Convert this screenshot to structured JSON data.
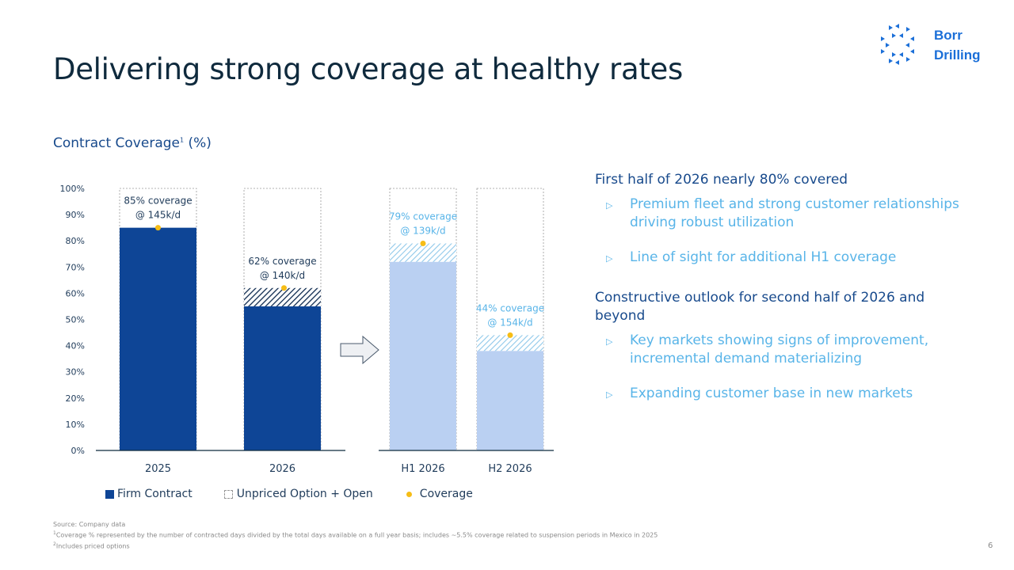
{
  "slide": {
    "title": "Delivering strong coverage at healthy rates",
    "page_number": "6",
    "logo": {
      "line1": "Borr",
      "line2": "Drilling",
      "icon": "borr-drilling-logo-icon",
      "color": "#1b6fd8"
    }
  },
  "chart_section": {
    "subtitle": "Contract Coverage",
    "subtitle_sup": "1",
    "subtitle_suffix": " (%)"
  },
  "chart_data": {
    "type": "bar",
    "stacked": true,
    "title": "Contract Coverage (%)",
    "xlabel": "",
    "ylabel": "",
    "ylim": [
      0,
      100
    ],
    "y_ticks": [
      "0%",
      "10%",
      "20%",
      "30%",
      "40%",
      "50%",
      "60%",
      "70%",
      "80%",
      "90%",
      "100%"
    ],
    "categories": [
      "2025",
      "2026",
      "H1 2026",
      "H2 2026"
    ],
    "groups": [
      {
        "categories": [
          "2025",
          "2026"
        ],
        "style": "annual"
      },
      {
        "categories": [
          "H1 2026",
          "H2 2026"
        ],
        "style": "half-year"
      }
    ],
    "series": [
      {
        "name": "Firm Contract",
        "values": [
          85,
          55,
          72,
          38
        ]
      },
      {
        "name": "Priced Options",
        "values": [
          0,
          7,
          7,
          6
        ]
      },
      {
        "name": "Unpriced Option + Open",
        "values": [
          15,
          38,
          21,
          56
        ]
      }
    ],
    "coverage": {
      "name": "Coverage",
      "values": [
        85,
        62,
        79,
        44
      ],
      "labels": [
        [
          "85% coverage",
          "@ 145k/d"
        ],
        [
          "62% coverage",
          "@ 140k/d"
        ],
        [
          "79% coverage",
          "@ 139k/d"
        ],
        [
          "44% coverage",
          "@ 154k/d"
        ]
      ]
    },
    "colors": {
      "firm_annual": "#0e4596",
      "firm_half": "#bad0f2",
      "hatch_annual": "#0e2a4f",
      "hatch_half": "#8fc8ea",
      "coverage_dot": "#f6bd16",
      "label_annual": "#1f3b5a",
      "label_half": "#58b4e8"
    },
    "legend": {
      "position": "bottom",
      "items": [
        "Firm Contract",
        "Unpriced Option + Open",
        "Coverage"
      ]
    },
    "annotation": "arrow from annual to half-year breakdown"
  },
  "commentary": {
    "sections": [
      {
        "heading": "First half of 2026 nearly 80% covered",
        "bullets": [
          "Premium fleet and strong customer relationships driving robust utilization",
          "Line of sight for additional H1 coverage"
        ]
      },
      {
        "heading": "Constructive outlook for second half of 2026 and beyond",
        "bullets": [
          "Key markets showing signs of improvement, incremental demand materializing",
          "Expanding customer base in new markets"
        ]
      }
    ],
    "bullet_icon": "triangle-right-outline-icon"
  },
  "footer": {
    "source": "Source: Company data",
    "note1_sup": "1",
    "note1": "Coverage % represented by the number of contracted days divided by the total days available on a full year basis; includes ~5.5% coverage related to suspension periods in Mexico in 2025",
    "note2_sup": "2",
    "note2": "Includes priced options"
  }
}
